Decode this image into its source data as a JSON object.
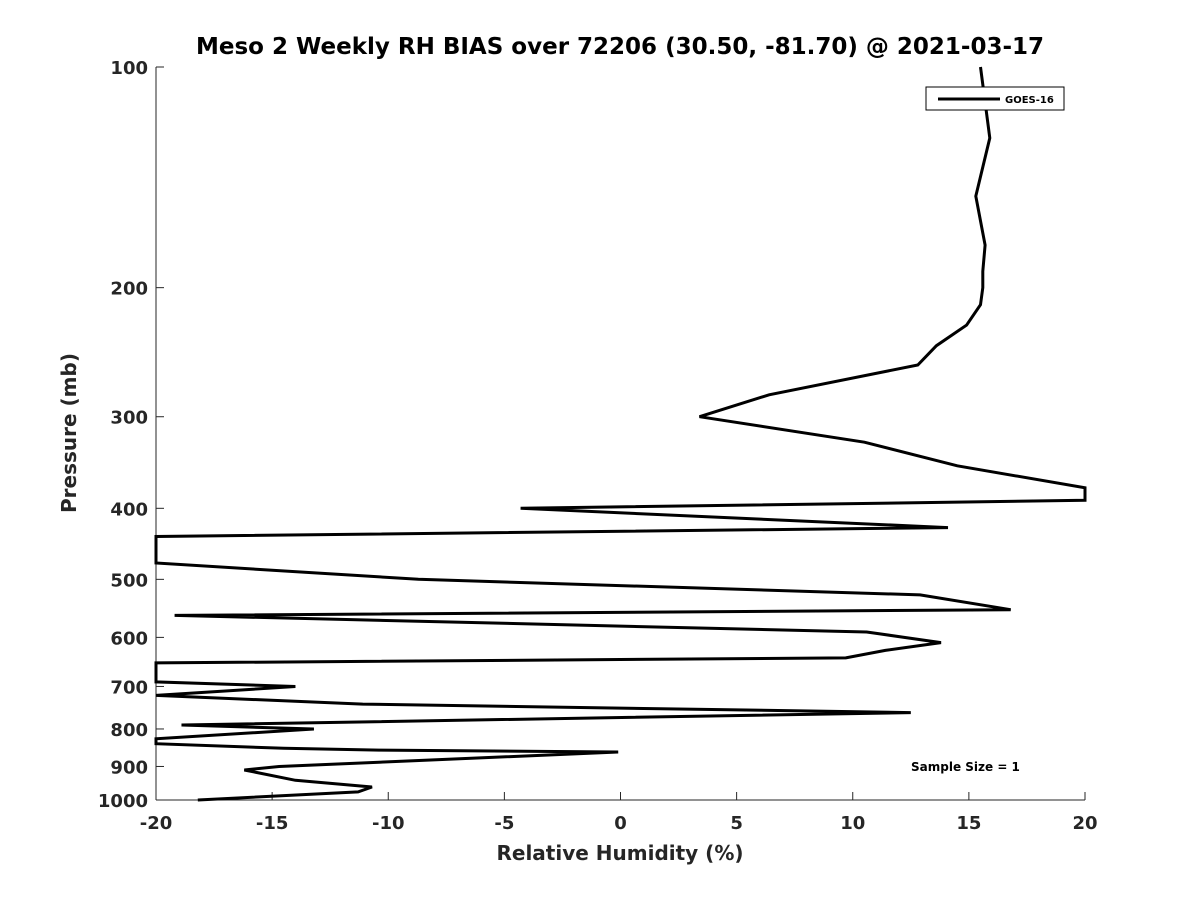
{
  "chart_data": {
    "type": "line",
    "title": "Meso 2 Weekly RH BIAS over 72206 (30.50, -81.70) @ 2021-03-17",
    "xlabel": "Relative Humidity (%)",
    "ylabel": "Pressure (mb)",
    "xlim": [
      -20,
      20
    ],
    "ylim": [
      100,
      1000
    ],
    "y_scale": "log",
    "y_reversed": true,
    "grid": false,
    "legend_location": "top-right",
    "x_ticks": [
      -20,
      -15,
      -10,
      -5,
      0,
      5,
      10,
      15,
      20
    ],
    "x_tick_labels": [
      "-20",
      "-15",
      "-10",
      "-5",
      "0",
      "5",
      "10",
      "15",
      "20"
    ],
    "y_ticks": [
      100,
      200,
      300,
      400,
      500,
      600,
      700,
      800,
      900,
      1000
    ],
    "y_tick_labels": [
      "100",
      "200",
      "300",
      "400",
      "500",
      "600",
      "700",
      "800",
      "900",
      "1000"
    ],
    "series": [
      {
        "name": "GOES-16",
        "color": "#000000",
        "x": [
          15.5,
          15.9,
          15.3,
          15.7,
          15.6,
          15.6,
          15.5,
          14.9,
          13.6,
          12.8,
          6.4,
          3.4,
          10.5,
          14.5,
          20.0,
          20.0,
          -4.3,
          14.1,
          -20.0,
          -20.0,
          -8.7,
          12.9,
          16.8,
          -19.2,
          10.6,
          13.8,
          11.4,
          9.7,
          -20.0,
          -20.0,
          -14.0,
          -20.0,
          -11.1,
          12.5,
          -18.9,
          -13.2,
          -20.0,
          -20.0,
          -14.5,
          -10.4,
          -0.1,
          -14.7,
          -16.2,
          -14.0,
          -10.7,
          -11.3,
          -18.2
        ],
        "y": [
          100,
          125,
          150,
          175,
          190,
          200,
          211,
          225,
          240,
          255,
          280,
          300,
          325,
          350,
          375,
          390,
          400,
          425,
          437,
          475,
          500,
          525,
          550,
          560,
          590,
          610,
          625,
          640,
          650,
          690,
          700,
          720,
          740,
          760,
          790,
          800,
          825,
          838,
          850,
          855,
          860,
          900,
          910,
          940,
          960,
          975,
          1000
        ]
      }
    ],
    "annotations": [
      "Sample Size = 1"
    ]
  }
}
